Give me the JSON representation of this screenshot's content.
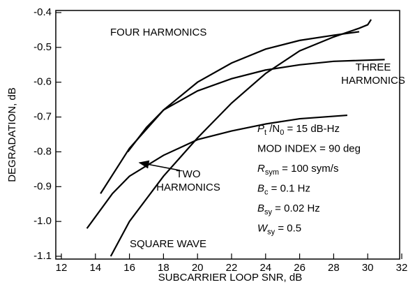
{
  "chart_data": {
    "type": "line",
    "xlabel": "SUBCARRIER LOOP SNR, dB",
    "ylabel": "DEGRADATION, dB",
    "xlim": [
      12,
      32
    ],
    "xticks": [
      12,
      14,
      16,
      18,
      20,
      22,
      24,
      26,
      28,
      30,
      32
    ],
    "ylim": [
      -1.1,
      -0.4
    ],
    "yticks": [
      -0.4,
      -0.5,
      -0.6,
      -0.7,
      -0.8,
      -0.9,
      {
        "value": -1.0,
        "label": "-1.0"
      },
      -1.1
    ],
    "series": [
      {
        "name": "FOUR HARMONICS",
        "color": "#000000",
        "x": [
          14.3,
          16,
          18,
          20,
          22,
          24,
          26,
          28,
          29.5
        ],
        "values": [
          -0.92,
          -0.79,
          -0.68,
          -0.6,
          -0.545,
          -0.505,
          -0.48,
          -0.465,
          -0.455
        ]
      },
      {
        "name": "THREE HARMONICS",
        "color": "#000000",
        "x": [
          15.9,
          17,
          18,
          20,
          22,
          24,
          26,
          28,
          31
        ],
        "values": [
          -0.8,
          -0.73,
          -0.68,
          -0.625,
          -0.59,
          -0.565,
          -0.55,
          -0.54,
          -0.535
        ]
      },
      {
        "name": "TWO HARMONICS",
        "color": "#000000",
        "x": [
          13.5,
          15,
          16,
          18,
          20,
          22,
          24,
          26,
          28.8
        ],
        "values": [
          -1.02,
          -0.92,
          -0.87,
          -0.81,
          -0.765,
          -0.74,
          -0.72,
          -0.705,
          -0.695
        ]
      },
      {
        "name": "SQUARE WAVE",
        "color": "#000000",
        "x": [
          14.9,
          16,
          18,
          20,
          22,
          24,
          26,
          28,
          29.5,
          30,
          30.2
        ],
        "values": [
          -1.1,
          -1.0,
          -0.87,
          -0.76,
          -0.66,
          -0.575,
          -0.51,
          -0.47,
          -0.445,
          -0.435,
          -0.42
        ]
      }
    ],
    "curve_labels": [
      [
        "FOUR HARMONICS"
      ],
      [
        "THREE",
        "HARMONICS"
      ],
      [
        "TWO",
        "HARMONICS"
      ],
      [
        "SQUARE WAVE"
      ]
    ],
    "annotations": [
      [
        "P",
        "t",
        " /N",
        "0",
        " = 15 dB-Hz"
      ],
      [
        "MOD INDEX = 90 deg"
      ],
      [
        "R",
        "sym",
        " = 100 sym/s"
      ],
      [
        "B",
        "c",
        " = 0.1 Hz"
      ],
      [
        "B",
        "sy",
        " = 0.02 Hz"
      ],
      [
        "W",
        "sy",
        " = 0.5"
      ]
    ]
  }
}
